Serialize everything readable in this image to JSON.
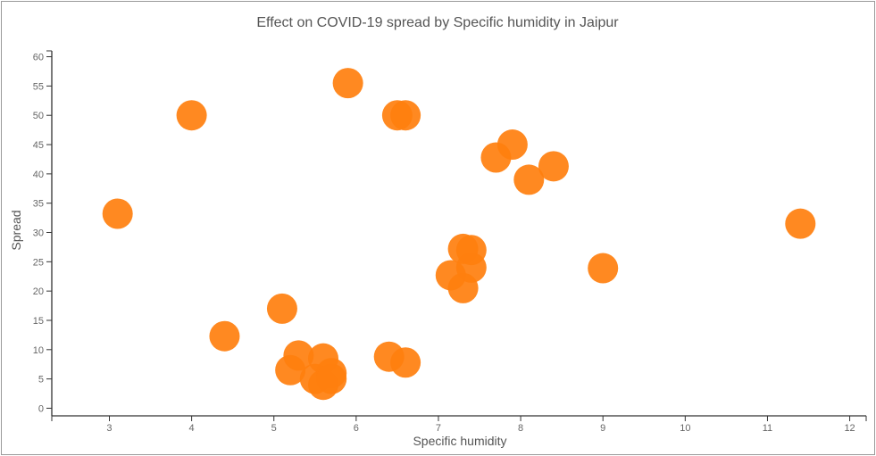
{
  "chart_data": {
    "type": "scatter",
    "title": "Effect on COVID-19 spread by Specific humidity in Jaipur",
    "xlabel": "Specific humidity",
    "ylabel": "Spread",
    "xlim": [
      2.3,
      12.2
    ],
    "ylim": [
      -1.3,
      61
    ],
    "x_ticks": [
      3,
      4,
      5,
      6,
      7,
      8,
      9,
      10,
      11,
      12
    ],
    "y_ticks": [
      0,
      5,
      10,
      15,
      20,
      25,
      30,
      35,
      40,
      45,
      50,
      55,
      60
    ],
    "grid": false,
    "legend": "none",
    "marker_color": "#ff7f0e",
    "points": [
      {
        "x": 3.1,
        "y": 33.2
      },
      {
        "x": 4.0,
        "y": 50.0
      },
      {
        "x": 4.4,
        "y": 12.3
      },
      {
        "x": 5.1,
        "y": 17.0
      },
      {
        "x": 5.2,
        "y": 6.5
      },
      {
        "x": 5.3,
        "y": 9.0
      },
      {
        "x": 5.5,
        "y": 5.0
      },
      {
        "x": 5.6,
        "y": 8.5
      },
      {
        "x": 5.6,
        "y": 4.0
      },
      {
        "x": 5.7,
        "y": 6.0
      },
      {
        "x": 5.7,
        "y": 5.0
      },
      {
        "x": 5.9,
        "y": 55.5
      },
      {
        "x": 6.4,
        "y": 8.8
      },
      {
        "x": 6.5,
        "y": 50.0
      },
      {
        "x": 6.6,
        "y": 50.0
      },
      {
        "x": 6.6,
        "y": 7.8
      },
      {
        "x": 7.15,
        "y": 22.7
      },
      {
        "x": 7.3,
        "y": 20.5
      },
      {
        "x": 7.3,
        "y": 27.2
      },
      {
        "x": 7.4,
        "y": 27.0
      },
      {
        "x": 7.4,
        "y": 24.0
      },
      {
        "x": 7.7,
        "y": 42.8
      },
      {
        "x": 7.9,
        "y": 45.0
      },
      {
        "x": 8.1,
        "y": 39.0
      },
      {
        "x": 8.4,
        "y": 41.3
      },
      {
        "x": 9.0,
        "y": 23.9
      },
      {
        "x": 11.4,
        "y": 31.5
      }
    ]
  }
}
